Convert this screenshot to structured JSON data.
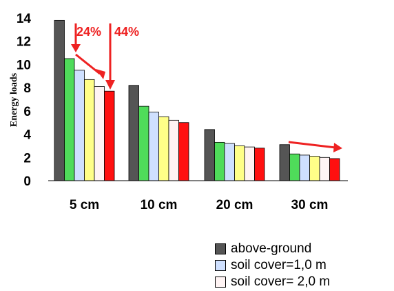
{
  "chart_data": {
    "type": "bar",
    "ylabel": "Energy loads",
    "xlabel": "",
    "ylim": [
      0,
      14
    ],
    "yticks": [
      "0",
      "2",
      "4",
      "6",
      "8",
      "10",
      "12",
      "14"
    ],
    "categories": [
      "5 cm",
      "10 cm",
      "20 cm",
      "30 cm"
    ],
    "series": [
      {
        "color": "#555555",
        "values": [
          13.8,
          8.2,
          4.4,
          3.1
        ]
      },
      {
        "color": "#4fdc5a",
        "values": [
          10.5,
          6.4,
          3.3,
          2.3
        ]
      },
      {
        "color": "#cfe0ff",
        "values": [
          9.5,
          5.9,
          3.2,
          2.2
        ]
      },
      {
        "color": "#ffff88",
        "values": [
          8.7,
          5.5,
          3.0,
          2.1
        ]
      },
      {
        "color": "#fff4f4",
        "values": [
          8.1,
          5.2,
          2.9,
          2.0
        ]
      },
      {
        "color": "#ff1010",
        "values": [
          7.7,
          5.0,
          2.8,
          1.9
        ]
      }
    ],
    "annotations": [
      "24%",
      "44%"
    ],
    "legend": {
      "placement": "bottom-right",
      "entries": [
        {
          "label": "above-ground",
          "color": "#555555"
        },
        {
          "label": "soil cover=1,0 m",
          "color": "#cfe0ff"
        },
        {
          "label": "soil cover= 2,0  m",
          "color": "#fff4f4"
        }
      ]
    },
    "grid": false
  }
}
